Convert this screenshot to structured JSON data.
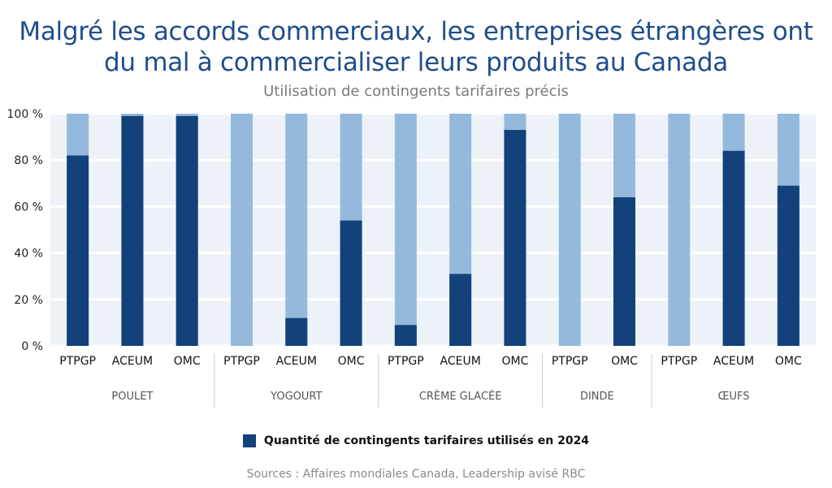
{
  "title": "Malgré les accords commerciaux, les entreprises étrangères ont du mal à commercialiser leurs produits au Canada",
  "subtitle": "Utilisation de contingents tarifaires précis",
  "source": "Sources : Affaires mondiales Canada, Leadership avisé RBC",
  "colors": {
    "used": "#13427a",
    "total": "#95b9dd",
    "plot_bg": "#edf2f8"
  },
  "chart_data": {
    "type": "bar",
    "stacked": true,
    "ylim": [
      0,
      100
    ],
    "yticks": [
      "0 %",
      "20 %",
      "40 %",
      "60 %",
      "80 %",
      "100 %"
    ],
    "groups": [
      {
        "name": "POULET",
        "categories": [
          "PTPGP",
          "ACEUM",
          "OMC"
        ],
        "values": [
          82,
          99,
          99
        ]
      },
      {
        "name": "YOGOURT",
        "categories": [
          "PTPGP",
          "ACEUM",
          "OMC"
        ],
        "values": [
          0,
          12,
          54
        ]
      },
      {
        "name": "CRÈME GLACÉE",
        "categories": [
          "PTPGP",
          "ACEUM",
          "OMC"
        ],
        "values": [
          9,
          31,
          93
        ]
      },
      {
        "name": "DINDE",
        "categories": [
          "PTPGP",
          "OMC"
        ],
        "values": [
          0,
          64
        ]
      },
      {
        "name": "ŒUFS",
        "categories": [
          "PTPGP",
          "ACEUM",
          "OMC"
        ],
        "values": [
          0,
          84,
          69
        ]
      }
    ],
    "series": [
      {
        "name": "Quantité de contingents tarifaires utilisés en 2024"
      }
    ],
    "grid": true,
    "legend": "bottom-center"
  }
}
